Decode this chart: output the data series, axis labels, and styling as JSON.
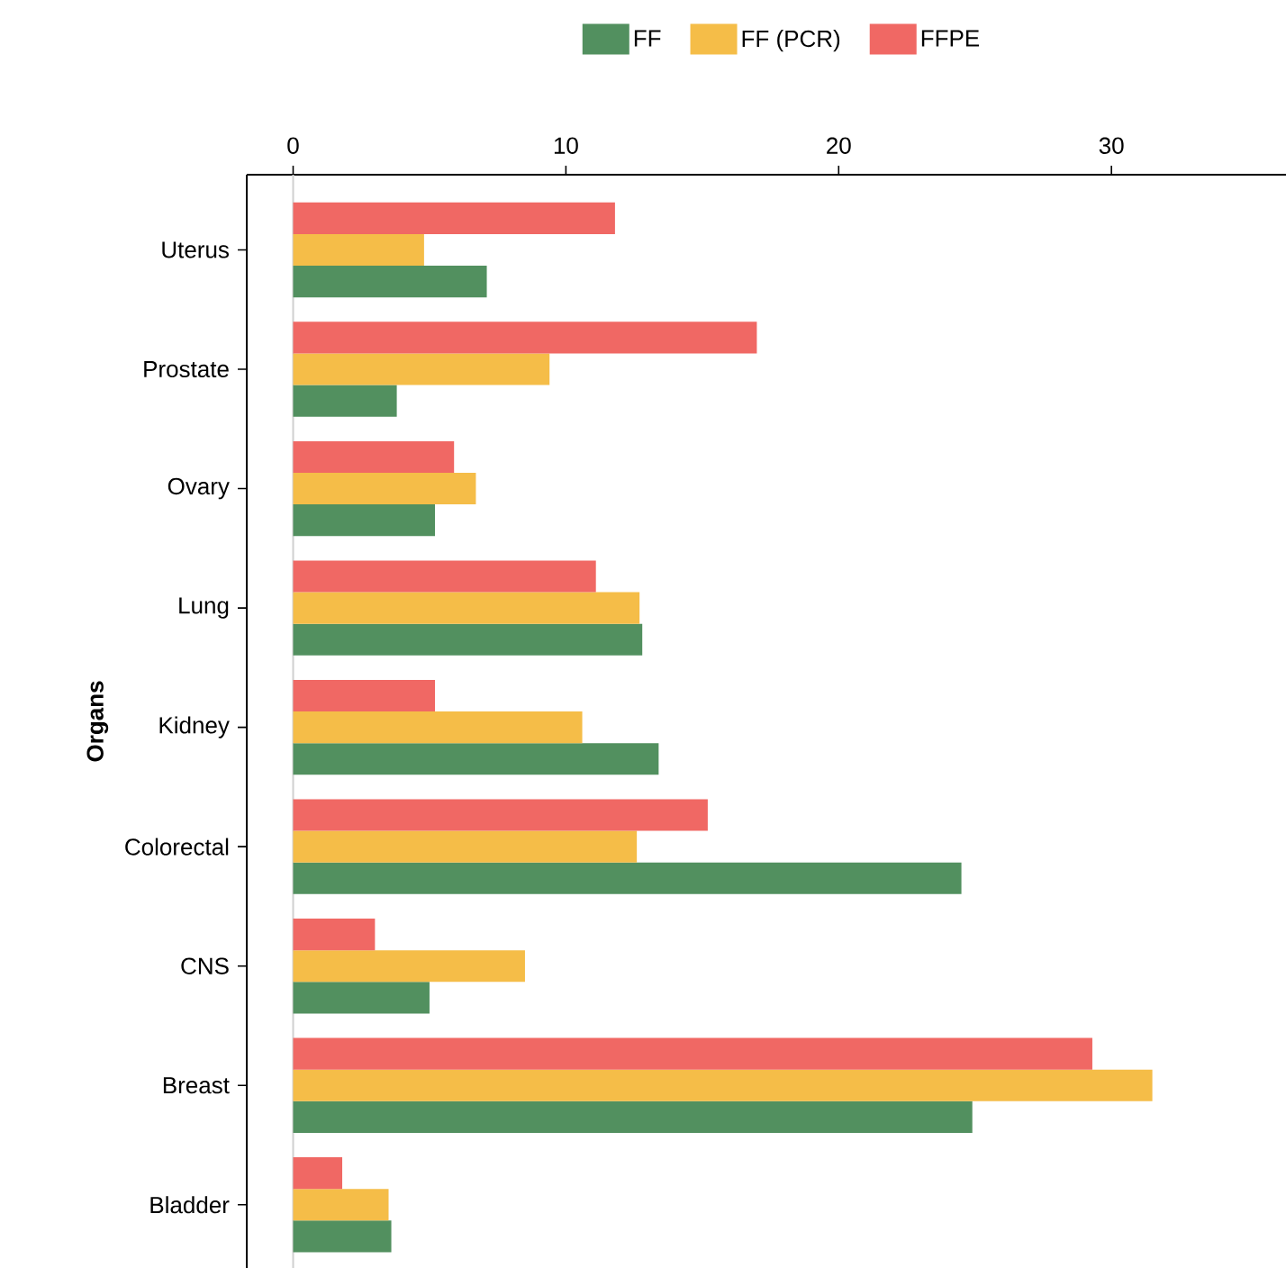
{
  "chart_data": {
    "type": "bar",
    "orientation": "horizontal",
    "ylabel": "Organs",
    "categories": [
      "Uterus",
      "Prostate",
      "Ovary",
      "Lung",
      "Kidney",
      "Colorectal",
      "CNS",
      "Breast",
      "Bladder"
    ],
    "series": [
      {
        "name": "FF",
        "color": "#52905f",
        "values": [
          7.1,
          3.8,
          5.2,
          12.8,
          13.4,
          24.5,
          5.0,
          24.9,
          3.6
        ]
      },
      {
        "name": "FF (PCR)",
        "color": "#f5bd48",
        "values": [
          4.8,
          9.4,
          6.7,
          12.7,
          10.6,
          12.6,
          8.5,
          31.5,
          3.5
        ]
      },
      {
        "name": "FFPE",
        "color": "#f06864",
        "values": [
          11.8,
          17.0,
          5.9,
          11.1,
          5.2,
          15.2,
          3.0,
          29.3,
          1.8
        ]
      }
    ],
    "xlim": [
      -1.7,
      36.4
    ],
    "xticks": [
      0,
      10,
      20,
      30
    ],
    "ref_lines": [
      {
        "axis": "x",
        "value": 0,
        "color": "#d0d0d0"
      }
    ],
    "legend": "top",
    "grid": false
  }
}
